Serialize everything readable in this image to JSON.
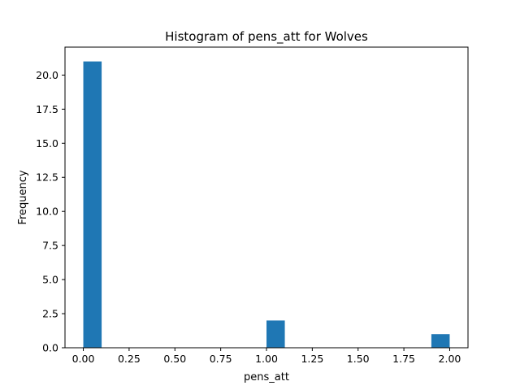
{
  "chart_data": {
    "type": "bar",
    "title": "Histogram of pens_att for Wolves",
    "xlabel": "pens_att",
    "ylabel": "Frequency",
    "xlim": [
      -0.1,
      2.1
    ],
    "ylim": [
      0,
      22.05
    ],
    "x_ticks": [
      0.0,
      0.25,
      0.5,
      0.75,
      1.0,
      1.25,
      1.5,
      1.75,
      2.0
    ],
    "x_tick_labels": [
      "0.00",
      "0.25",
      "0.50",
      "0.75",
      "1.00",
      "1.25",
      "1.50",
      "1.75",
      "2.00"
    ],
    "y_ticks": [
      0.0,
      2.5,
      5.0,
      7.5,
      10.0,
      12.5,
      15.0,
      17.5,
      20.0
    ],
    "y_tick_labels": [
      "0.0",
      "2.5",
      "5.0",
      "7.5",
      "10.0",
      "12.5",
      "15.0",
      "17.5",
      "20.0"
    ],
    "bins": [
      {
        "x0": 0.0,
        "x1": 0.1,
        "count": 21
      },
      {
        "x0": 1.0,
        "x1": 1.1,
        "count": 2
      },
      {
        "x0": 1.9,
        "x1": 2.0,
        "count": 1
      }
    ],
    "bar_color": "#1f77b4",
    "grid": false,
    "legend": "none"
  }
}
